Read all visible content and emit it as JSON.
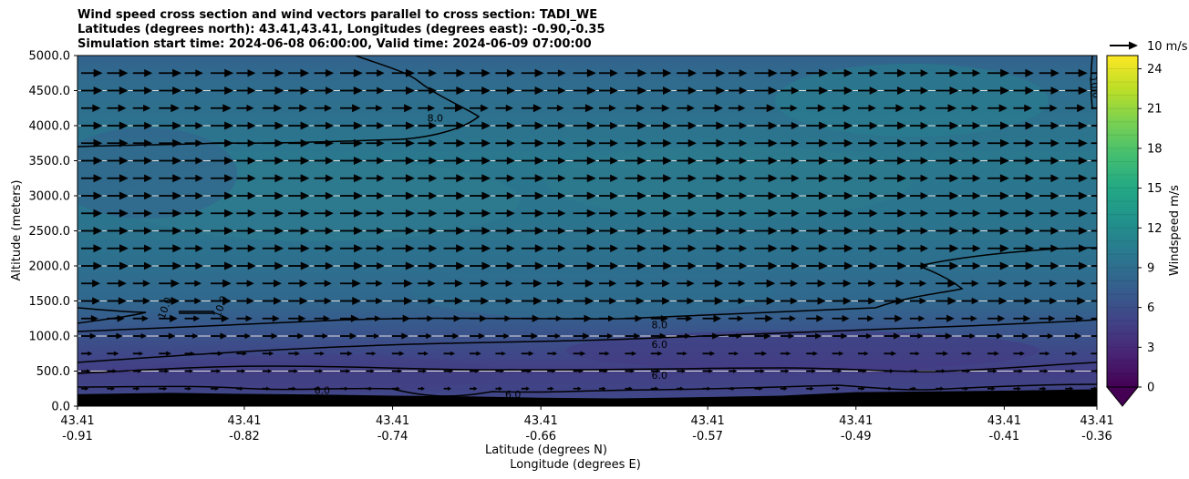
{
  "chart_data": {
    "type": "cross-section",
    "title_lines": [
      "Wind speed cross section and wind vectors parallel to cross section: TADI_WE",
      "Latitudes (degrees north): 43.41,43.41, Longitudes (degrees east): -0.90,-0.35",
      "Simulation start time: 2024-06-08 06:00:00, Valid time: 2024-06-09 07:00:00"
    ],
    "xlabel_lat": "Latitude (degrees N)",
    "xlabel_lon": "Longitude (degrees E)",
    "ylabel": "Altitude (meters)",
    "ylim": [
      0,
      5000
    ],
    "y_ticks": [
      0,
      500,
      1000,
      1500,
      2000,
      2500,
      3000,
      3500,
      4000,
      4500,
      5000
    ],
    "y_tick_labels": [
      "0.0",
      "500.0",
      "1000.0",
      "1500.0",
      "2000.0",
      "2500.0",
      "3000.0",
      "3500.0",
      "4000.0",
      "4500.0",
      "5000.0"
    ],
    "xlim": [
      -0.91,
      -0.36
    ],
    "x_tick_values": [
      -0.91,
      -0.82,
      -0.74,
      -0.66,
      -0.57,
      -0.49,
      -0.41,
      -0.36
    ],
    "x_tick_lat_labels": [
      "43.41",
      "43.41",
      "43.41",
      "43.41",
      "43.41",
      "43.41",
      "43.41",
      "43.41"
    ],
    "x_tick_lon_labels": [
      "-0.91",
      "-0.82",
      "-0.74",
      "-0.66",
      "-0.57",
      "-0.49",
      "-0.41",
      "-0.36"
    ],
    "colorbar": {
      "label": "Windspeed m/s",
      "range": [
        0,
        25
      ],
      "ticks": [
        "0",
        "3",
        "6",
        "9",
        "12",
        "15",
        "18",
        "21",
        "24"
      ],
      "extend": "min"
    },
    "quiver_key": "10 m/s",
    "contour_levels": [
      "6.0",
      "8.0",
      "10.0"
    ],
    "contour_labels": [
      {
        "text": "6.0",
        "lon": -0.596,
        "alt": 880
      },
      {
        "text": "6.0",
        "lon": -0.596,
        "alt": 440
      },
      {
        "text": "6.0",
        "lon": -0.675,
        "alt": 170
      },
      {
        "text": "6.0",
        "lon": -0.778,
        "alt": 230
      },
      {
        "text": "8.0",
        "lon": -0.596,
        "alt": 1160
      },
      {
        "text": "8.0",
        "lon": -0.717,
        "alt": 4110
      },
      {
        "text": "10.0",
        "lon": -0.863,
        "alt": 1400
      },
      {
        "text": "10.0",
        "lon": -0.833,
        "alt": 1420
      },
      {
        "text": "10.0",
        "lon": -0.361,
        "alt": 4550
      }
    ],
    "terrain_top_m": [
      [
        -0.91,
        170
      ],
      [
        -0.86,
        190
      ],
      [
        -0.82,
        175
      ],
      [
        -0.78,
        165
      ],
      [
        -0.74,
        150
      ],
      [
        -0.7,
        140
      ],
      [
        -0.66,
        120
      ],
      [
        -0.62,
        110
      ],
      [
        -0.57,
        130
      ],
      [
        -0.53,
        150
      ],
      [
        -0.49,
        200
      ],
      [
        -0.45,
        210
      ],
      [
        -0.41,
        220
      ],
      [
        -0.36,
        240
      ]
    ],
    "wind_rows_m": [
      0,
      250,
      500,
      750,
      1000,
      1250,
      1500,
      1750,
      2000,
      2250,
      2500,
      2750,
      3000,
      3250,
      3500,
      3750,
      4000,
      4250,
      4500,
      4750
    ],
    "wind_row_speeds_ms": [
      2,
      4,
      5,
      6,
      8,
      9,
      10,
      10,
      11,
      11,
      11,
      11,
      11,
      11,
      11,
      11,
      11,
      10,
      11,
      11
    ]
  }
}
